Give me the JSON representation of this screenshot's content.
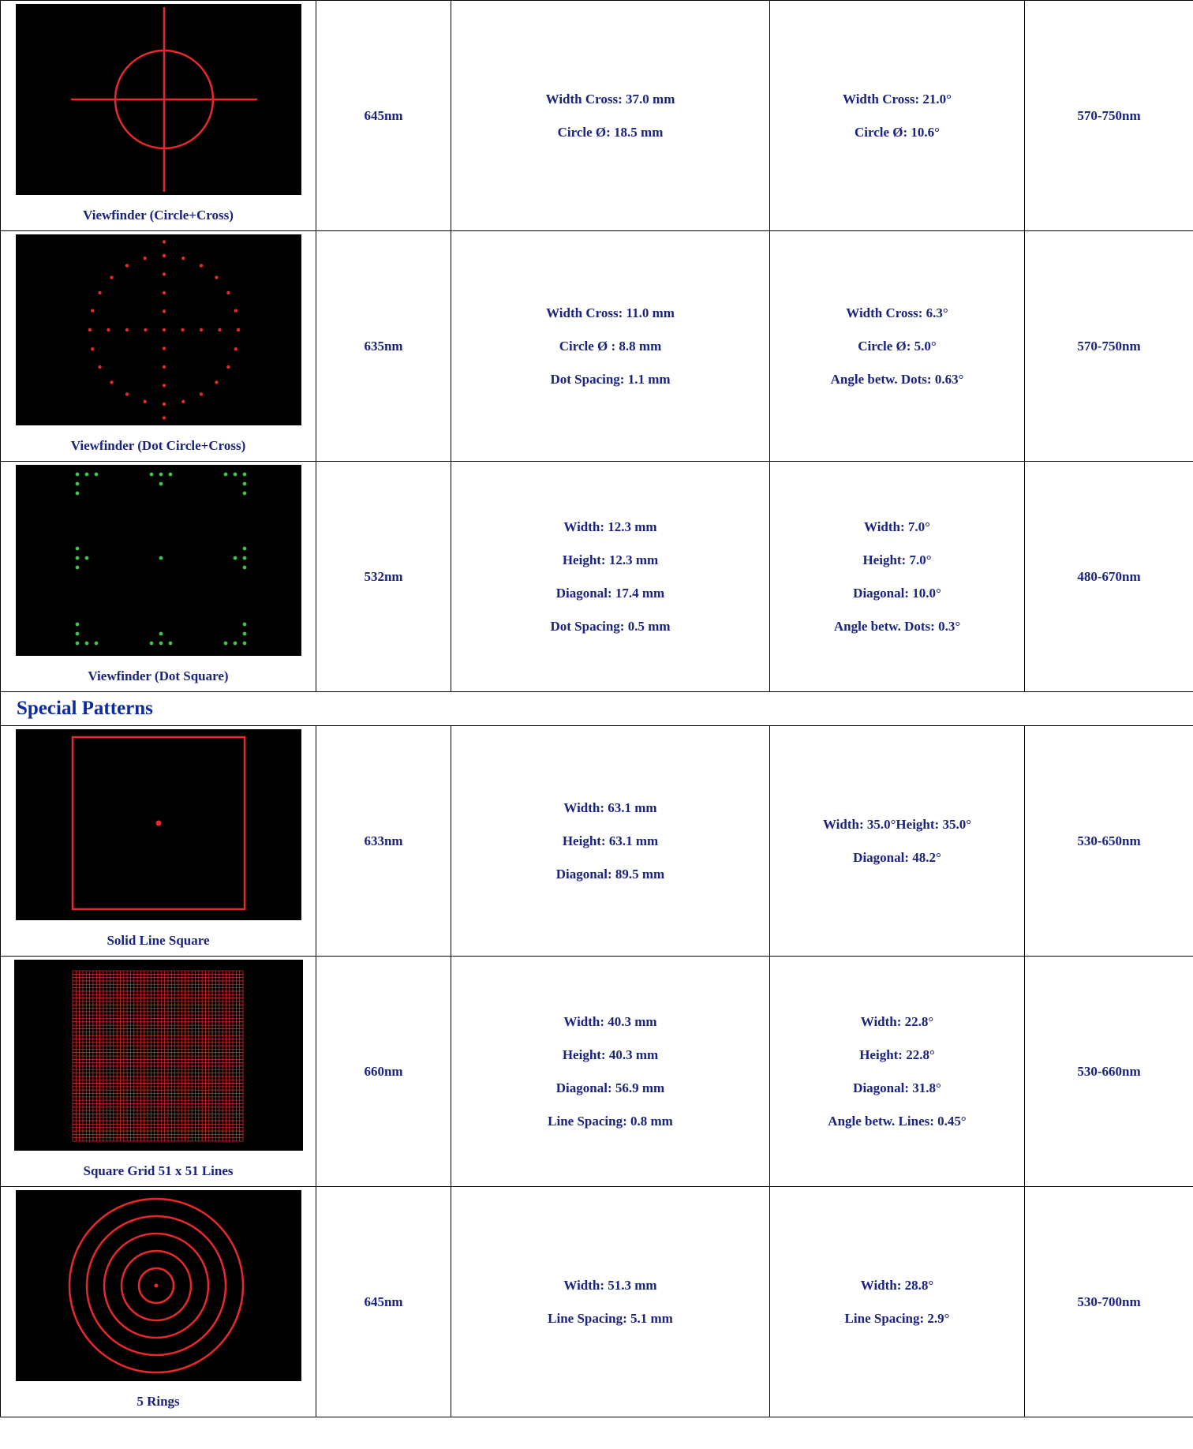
{
  "rows": [
    {
      "name": "Viewfinder (Circle+Cross)",
      "wavelength": "645nm",
      "mm": [
        "Width Cross: 37.0 mm",
        "Circle Ø: 18.5 mm"
      ],
      "deg": [
        "Width Cross: 21.0°",
        "Circle Ø: 10.6°"
      ],
      "range": "570-750nm",
      "pattern": "circle-cross",
      "color": "#e8292c"
    },
    {
      "name": "Viewfinder (Dot Circle+Cross)",
      "wavelength": "635nm",
      "mm": [
        "Width Cross: 11.0 mm",
        "Circle Ø : 8.8 mm",
        "Dot Spacing: 1.1 mm"
      ],
      "deg": [
        "Width Cross: 6.3°",
        "Circle Ø: 5.0°",
        "Angle betw. Dots: 0.63°"
      ],
      "range": "570-750nm",
      "pattern": "dot-circle-cross",
      "color": "#e8292c"
    },
    {
      "name": "Viewfinder (Dot Square)",
      "wavelength": "532nm",
      "mm": [
        "Width: 12.3 mm",
        "Height: 12.3 mm",
        "Diagonal: 17.4 mm",
        "Dot Spacing: 0.5 mm"
      ],
      "deg": [
        "Width: 7.0°",
        "Height: 7.0°",
        "Diagonal: 10.0°",
        "Angle betw. Dots: 0.3°"
      ],
      "range": "480-670nm",
      "pattern": "dot-square",
      "color": "#3fc24a"
    }
  ],
  "section": {
    "title": "Special Patterns"
  },
  "special_rows": [
    {
      "name": "Solid Line Square",
      "wavelength": "633nm",
      "mm": [
        "Width: 63.1 mm",
        "Height: 63.1 mm",
        "Diagonal: 89.5 mm"
      ],
      "deg": [
        "Width: 35.0°Height: 35.0°",
        "Diagonal: 48.2°"
      ],
      "range": "530-650nm",
      "pattern": "solid-square",
      "color": "#e8292c"
    },
    {
      "name": "Square Grid 51 x 51 Lines",
      "wavelength": "660nm",
      "mm": [
        "Width: 40.3 mm",
        "Height: 40.3 mm",
        "Diagonal: 56.9 mm",
        "Line Spacing: 0.8 mm"
      ],
      "deg": [
        "Width: 22.8°",
        "Height: 22.8°",
        "Diagonal: 31.8°",
        "Angle betw. Lines: 0.45°"
      ],
      "range": "530-660nm",
      "pattern": "grid",
      "color": "#d62b2b"
    },
    {
      "name": "5 Rings",
      "wavelength": "645nm",
      "mm": [
        "Width: 51.3 mm",
        "Line Spacing: 5.1 mm"
      ],
      "deg": [
        "Width: 28.8°",
        "Line Spacing: 2.9°"
      ],
      "range": "530-700nm",
      "pattern": "rings",
      "color": "#e8292c"
    }
  ]
}
